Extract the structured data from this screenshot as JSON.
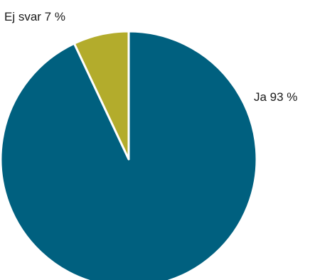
{
  "chart_data": {
    "type": "pie",
    "slices": [
      {
        "label": "Ja 93 %",
        "value": 93,
        "color": "#00607f"
      },
      {
        "label": "Ej svar 7 %",
        "value": 7,
        "color": "#b3ac2c"
      }
    ],
    "start_angle": "top",
    "direction": "clockwise",
    "slice_separator_color": "#ffffff"
  }
}
